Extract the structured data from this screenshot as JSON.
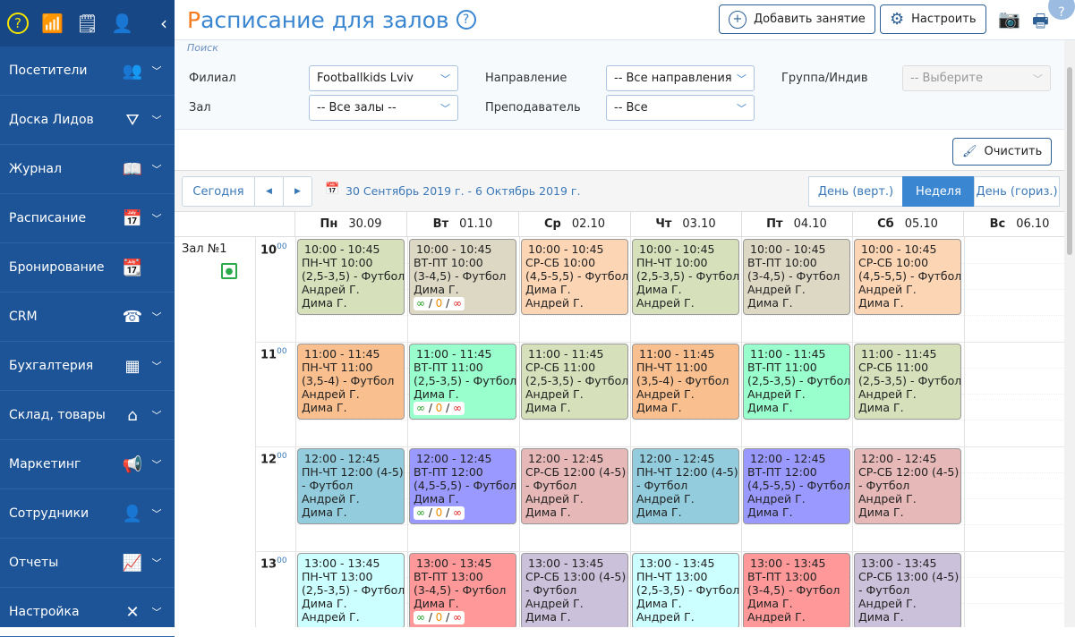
{
  "sidebar": {
    "top_icons": [
      "help-icon",
      "chart-icon",
      "task-add-icon",
      "user-check-icon"
    ],
    "collapse": "‹",
    "items": [
      {
        "label": "Посетители",
        "icon": "users-icon",
        "glyph": "👥"
      },
      {
        "label": "Доска Лидов",
        "icon": "funnel-dollar-icon",
        "glyph": "⛛"
      },
      {
        "label": "Журнал",
        "icon": "book-icon",
        "glyph": "📖"
      },
      {
        "label": "Расписание",
        "icon": "calendar-clock-icon",
        "glyph": "📅"
      },
      {
        "label": "Бронирование",
        "icon": "calendar-check-icon",
        "glyph": "📆"
      },
      {
        "label": "CRM",
        "icon": "phone-icon",
        "glyph": "☎"
      },
      {
        "label": "Бухгалтерия",
        "icon": "calculator-icon",
        "glyph": "▦"
      },
      {
        "label": "Склад, товары",
        "icon": "warehouse-icon",
        "glyph": "⌂"
      },
      {
        "label": "Маркетинг",
        "icon": "megaphone-icon",
        "glyph": "📢"
      },
      {
        "label": "Сотрудники",
        "icon": "employee-icon",
        "glyph": "👤"
      },
      {
        "label": "Отчеты",
        "icon": "report-chart-icon",
        "glyph": "📈"
      },
      {
        "label": "Настройка",
        "icon": "tools-icon",
        "glyph": "✕"
      }
    ]
  },
  "header": {
    "title_first": "Р",
    "title_rest": "асписание для залов",
    "add_label": "Добавить занятие",
    "settings_label": "Настроить"
  },
  "filters": {
    "search_label": "Поиск",
    "branch_label": "Филиал",
    "branch_value": "Footballkids Lviv",
    "hall_label": "Зал",
    "hall_value": "-- Все залы --",
    "direction_label": "Направление",
    "direction_value": "-- Все направления",
    "teacher_label": "Преподаватель",
    "teacher_value": "-- Все",
    "group_label": "Группа/Индив",
    "group_value": "-- Выберите",
    "clear_label": "Очистить"
  },
  "toolbar": {
    "today": "Сегодня",
    "range": "30 Сентябрь 2019 г. - 6 Октябрь 2019 г.",
    "views": [
      "День (верт.)",
      "Неделя",
      "День (гориз.)"
    ],
    "active_view": "Неделя"
  },
  "schedule": {
    "room": "Зал №1",
    "days": [
      {
        "d": "Пн",
        "date": "30.09"
      },
      {
        "d": "Вт",
        "date": "01.10"
      },
      {
        "d": "Ср",
        "date": "02.10"
      },
      {
        "d": "Чт",
        "date": "03.10"
      },
      {
        "d": "Пт",
        "date": "04.10"
      },
      {
        "d": "Сб",
        "date": "05.10"
      },
      {
        "d": "Вс",
        "date": "06.10"
      }
    ],
    "hours": [
      "10",
      "11",
      "12",
      "13"
    ],
    "minutes": "00",
    "capacity": {
      "a": "∞",
      "b": "0",
      "c": "∞",
      "colors": [
        "#1a9a1a",
        "#f08c00",
        "#e02020"
      ]
    },
    "events": [
      [
        {
          "c": "#d6e1bc",
          "lines": [
            "10:00 - 10:45",
            "ПН-ЧТ 10:00",
            "(2,5-3,5) - Футбол",
            "Андрей Г.",
            "Дима Г."
          ]
        },
        {
          "c": "#ddd8c4",
          "cap": true,
          "lines": [
            "10:00 - 10:45",
            "ВТ-ПТ 10:00",
            "(3-4,5) - Футбол",
            "Дима Г."
          ]
        },
        {
          "c": "#fcd5b5",
          "lines": [
            "10:00 - 10:45",
            "СР-СБ 10:00",
            "(4,5-5,5) - Футбол",
            "Дима Г.",
            "Андрей Г."
          ]
        },
        {
          "c": "#d6e1bc",
          "lines": [
            "10:00 - 10:45",
            "ПН-ЧТ 10:00",
            "(2,5-3,5) - Футбол",
            "Дима Г.",
            "Андрей Г."
          ]
        },
        {
          "c": "#ddd8c4",
          "lines": [
            "10:00 - 10:45",
            "ВТ-ПТ 10:00",
            "(3-4,5) - Футбол",
            "Андрей Г.",
            "Дима Г."
          ]
        },
        {
          "c": "#fcd5b5",
          "lines": [
            "10:00 - 10:45",
            "СР-СБ 10:00",
            "(4,5-5,5) - Футбол",
            "Андрей Г.",
            "Дима Г."
          ]
        }
      ],
      [
        {
          "c": "#f9bf8f",
          "lines": [
            "11:00 - 11:45",
            "ПН-ЧТ 11:00",
            "(3,5-4) - Футбол",
            "Андрей Г.",
            "Дима Г."
          ]
        },
        {
          "c": "#99ffcc",
          "cap": true,
          "lines": [
            "11:00 - 11:45",
            "ВТ-ПТ 11:00",
            "(2,5-3,5) - Футбол",
            "Дима Г."
          ]
        },
        {
          "c": "#d6e1bc",
          "lines": [
            "11:00 - 11:45",
            "СР-СБ 11:00",
            "(2,5-3,5) - Футбол",
            "Андрей Г.",
            "Дима Г."
          ]
        },
        {
          "c": "#f9bf8f",
          "lines": [
            "11:00 - 11:45",
            "ПН-ЧТ 11:00",
            "(3,5-4) - Футбол",
            "Андрей Г.",
            "Дима Г."
          ]
        },
        {
          "c": "#99ffcc",
          "lines": [
            "11:00 - 11:45",
            "ВТ-ПТ 11:00",
            "(2,5-3,5) - Футбол",
            "Андрей Г.",
            "Дима Г."
          ]
        },
        {
          "c": "#d6e1bc",
          "lines": [
            "11:00 - 11:45",
            "СР-СБ 11:00",
            "(2,5-3,5) - Футбол",
            "Андрей Г.",
            "Дима Г."
          ]
        }
      ],
      [
        {
          "c": "#93cddd",
          "lines": [
            "12:00 - 12:45",
            "ПН-ЧТ 12:00 (4-5)",
            "- Футбол",
            "Андрей Г.",
            "Дима Г."
          ]
        },
        {
          "c": "#9999ff",
          "cap": true,
          "lines": [
            "12:00 - 12:45",
            "ВТ-ПТ 12:00",
            "(4,5-5,5) - Футбол",
            "Дима Г."
          ]
        },
        {
          "c": "#e6b9b8",
          "lines": [
            "12:00 - 12:45",
            "СР-СБ 12:00 (4-5)",
            "- Футбол",
            "Андрей Г.",
            "Дима Г."
          ]
        },
        {
          "c": "#93cddd",
          "lines": [
            "12:00 - 12:45",
            "ПН-ЧТ 12:00 (4-5)",
            "- Футбол",
            "Андрей Г.",
            "Дима Г."
          ]
        },
        {
          "c": "#9999ff",
          "lines": [
            "12:00 - 12:45",
            "ВТ-ПТ 12:00",
            "(4,5-5,5) - Футбол",
            "Андрей Г.",
            "Дима Г."
          ]
        },
        {
          "c": "#e6b9b8",
          "lines": [
            "12:00 - 12:45",
            "СР-СБ 12:00 (4-5)",
            "- Футбол",
            "Андрей Г.",
            "Дима Г."
          ]
        }
      ],
      [
        {
          "c": "#ccffff",
          "lines": [
            "13:00 - 13:45",
            "ПН-ЧТ 13:00",
            "(2,5-3,5) - Футбол",
            "Дима Г.",
            "Андрей Г."
          ]
        },
        {
          "c": "#ff9999",
          "cap": true,
          "lines": [
            "13:00 - 13:45",
            "ВТ-ПТ 13:00",
            "(3-4,5) - Футбол",
            "Дима Г."
          ]
        },
        {
          "c": "#ccc1da",
          "lines": [
            "13:00 - 13:45",
            "СР-СБ 13:00 (4-5)",
            "- Футбол",
            "Андрей Г.",
            "Дима Г."
          ]
        },
        {
          "c": "#ccffff",
          "lines": [
            "13:00 - 13:45",
            "ПН-ЧТ 13:00",
            "(2,5-3,5) - Футбол",
            "Дима Г.",
            "Андрей Г."
          ]
        },
        {
          "c": "#ff9999",
          "lines": [
            "13:00 - 13:45",
            "ВТ-ПТ 13:00",
            "(3-4,5) - Футбол",
            "Дима Г.",
            "Андрей Г."
          ]
        },
        {
          "c": "#ccc1da",
          "lines": [
            "13:00 - 13:45",
            "СР-СБ 13:00 (4-5)",
            "- Футбол",
            "Андрей Г.",
            "Дима Г."
          ]
        }
      ]
    ]
  }
}
